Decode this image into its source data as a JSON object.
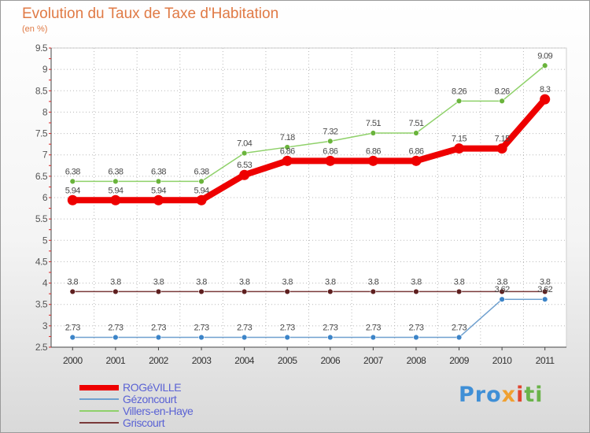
{
  "chart_data": {
    "type": "line",
    "title": "Evolution du Taux de Taxe d'Habitation",
    "unit_label": "(en %)",
    "xlabel": "",
    "ylabel": "",
    "ylim": [
      2.5,
      9.5
    ],
    "y_ticks": [
      "2.5",
      "3",
      "3.5",
      "4",
      "4.5",
      "5",
      "5.5",
      "6",
      "6.5",
      "7",
      "7.5",
      "8",
      "8.5",
      "9",
      "9.5"
    ],
    "categories": [
      "2000",
      "2001",
      "2002",
      "2003",
      "2004",
      "2005",
      "2006",
      "2007",
      "2008",
      "2009",
      "2010",
      "2011"
    ],
    "series": [
      {
        "name": "Villers-en-Haye",
        "color": "#8fd16a",
        "marker": "#6ab43c",
        "values": [
          6.38,
          6.38,
          6.38,
          6.38,
          7.04,
          7.18,
          7.32,
          7.51,
          7.51,
          8.26,
          8.26,
          9.09
        ],
        "labels": [
          "6.38",
          "6.38",
          "6.38",
          "6.38",
          "7.04",
          "7.18",
          "7.32",
          "7.51",
          "7.51",
          "8.26",
          "8.26",
          "9.09"
        ]
      },
      {
        "name": "Griscourt",
        "color": "#7a3a3a",
        "marker": "#5e1f1f",
        "values": [
          3.8,
          3.8,
          3.8,
          3.8,
          3.8,
          3.8,
          3.8,
          3.8,
          3.8,
          3.8,
          3.8,
          3.8
        ],
        "labels": [
          "3.8",
          "3.8",
          "3.8",
          "3.8",
          "3.8",
          "3.8",
          "3.8",
          "3.8",
          "3.8",
          "3.8",
          "3.8",
          "3.8"
        ]
      },
      {
        "name": "Gézoncourt",
        "color": "#6fa0cf",
        "marker": "#3c84c8",
        "values": [
          2.73,
          2.73,
          2.73,
          2.73,
          2.73,
          2.73,
          2.73,
          2.73,
          2.73,
          2.73,
          3.62,
          3.62
        ],
        "labels": [
          "2.73",
          "2.73",
          "2.73",
          "2.73",
          "2.73",
          "2.73",
          "2.73",
          "2.73",
          "2.73",
          "2.73",
          "3.62",
          "3.62"
        ]
      },
      {
        "name": "ROGéVILLE",
        "color": "#ee0000",
        "marker": "#ee0000",
        "values": [
          5.94,
          5.94,
          5.94,
          5.94,
          6.53,
          6.86,
          6.86,
          6.86,
          6.86,
          7.15,
          7.15,
          8.3
        ],
        "labels": [
          "5.94",
          "5.94",
          "5.94",
          "5.94",
          "6.53",
          "6.86",
          "6.86",
          "6.86",
          "6.86",
          "7.15",
          "7.15",
          "8.3"
        ]
      }
    ],
    "legend": [
      "ROGéVILLE",
      "Gézoncourt",
      "Villers-en-Haye",
      "Griscourt"
    ],
    "legend_position": "bottom-left"
  },
  "logo": {
    "p1": "Pro",
    "p2": "x",
    "p3": "i",
    "p4": "ti"
  }
}
